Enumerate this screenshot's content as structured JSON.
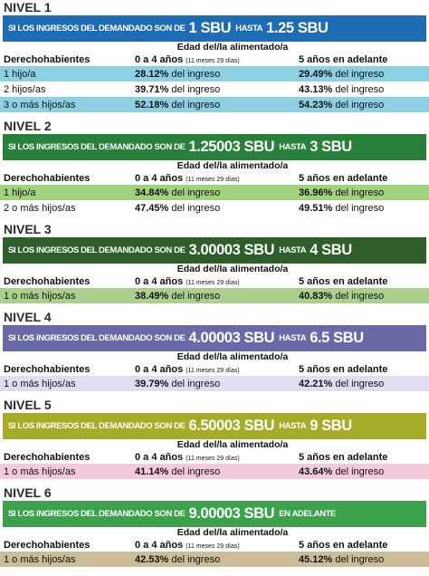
{
  "levels": [
    {
      "title": "NIVEL 1",
      "banner": {
        "prefix": "SI LOS INGRESOS DEL DEMANDADO SON DE",
        "from": "1 SBU",
        "connector": "HASTA",
        "to": "1.25 SBU"
      },
      "age_header": "Edad del/la alimentado/a",
      "columns": {
        "label": "Derechohabientes",
        "young": "0 a 4 años",
        "young_note": "(11 meses 29 días)",
        "old": "5 años en adelante"
      },
      "rows": [
        {
          "label": "1 hijo/a",
          "young": "28.12%",
          "young_suffix": "del ingreso",
          "old": "29.49%",
          "old_suffix": "del ingreso"
        },
        {
          "label": "2 hijos/as",
          "young": "39.71%",
          "young_suffix": "del ingreso",
          "old": "43.13%",
          "old_suffix": "del ingreso"
        },
        {
          "label": "3 o más hijos/as",
          "young": "52.18%",
          "young_suffix": "del ingreso",
          "old": "54.23%",
          "old_suffix": "del ingreso"
        }
      ]
    },
    {
      "title": "NIVEL 2",
      "banner": {
        "prefix": "SI LOS INGRESOS DEL DEMANDADO SON DE",
        "from": "1.25003 SBU",
        "connector": "HASTA",
        "to": "3 SBU"
      },
      "age_header": "Edad del/la alimentado/a",
      "columns": {
        "label": "Derechohabientes",
        "young": "0 a 4 años",
        "young_note": "(11 meses 29 días)",
        "old": "5 años en adelante"
      },
      "rows": [
        {
          "label": "1 hijo/a",
          "young": "34.84%",
          "young_suffix": "del ingreso",
          "old": "36.96%",
          "old_suffix": "del ingreso"
        },
        {
          "label": "2 o más hijos/as",
          "young": "47.45%",
          "young_suffix": "del ingreso",
          "old": "49.51%",
          "old_suffix": "del ingreso"
        }
      ]
    },
    {
      "title": "NIVEL 3",
      "banner": {
        "prefix": "SI LOS INGRESOS DEL DEMANDADO SON DE",
        "from": "3.00003 SBU",
        "connector": "HASTA",
        "to": "4 SBU"
      },
      "age_header": "Edad del/la alimentado/a",
      "columns": {
        "label": "Derechohabientes",
        "young": "0 a 4 años",
        "young_note": "(11 meses 29 días)",
        "old": "5 años en adelante"
      },
      "rows": [
        {
          "label": "1 o más hijos/as",
          "young": "38.49%",
          "young_suffix": "del ingreso",
          "old": "40.83%",
          "old_suffix": "del ingreso"
        }
      ]
    },
    {
      "title": "NIVEL 4",
      "banner": {
        "prefix": "SI LOS INGRESOS DEL DEMANDADO SON DE",
        "from": "4.00003 SBU",
        "connector": "HASTA",
        "to": "6.5 SBU"
      },
      "age_header": "Edad del/la alimentado/a",
      "columns": {
        "label": "Derechohabientes",
        "young": "0 a 4 años",
        "young_note": "(11 meses 29 días)",
        "old": "5 años en adelante"
      },
      "rows": [
        {
          "label": "1 o más hijos/as",
          "young": "39.79%",
          "young_suffix": "del ingreso",
          "old": "42.21%",
          "old_suffix": "del ingreso"
        }
      ]
    },
    {
      "title": "NIVEL 5",
      "banner": {
        "prefix": "SI LOS INGRESOS DEL DEMANDADO SON DE",
        "from": "6.50003 SBU",
        "connector": "HASTA",
        "to": "9 SBU"
      },
      "age_header": "Edad del/la alimentado/a",
      "columns": {
        "label": "Derechohabientes",
        "young": "0 a 4 años",
        "young_note": "(11 meses 29 días)",
        "old": "5 años en adelante"
      },
      "rows": [
        {
          "label": "1 o más hijos/as",
          "young": "41.14%",
          "young_suffix": "del ingreso",
          "old": "43.64%",
          "old_suffix": "del ingreso"
        }
      ]
    },
    {
      "title": "NIVEL 6",
      "banner": {
        "prefix": "SI LOS INGRESOS DEL DEMANDADO SON DE",
        "from": "9.00003 SBU",
        "connector": "EN ADELANTE"
      },
      "age_header": "Edad del/la alimentado/a",
      "columns": {
        "label": "Derechohabientes",
        "young": "0 a 4 años",
        "young_note": "(11 meses 29 días)",
        "old": "5 años en adelante"
      },
      "rows": [
        {
          "label": "1 o más hijos/as",
          "young": "42.53%",
          "young_suffix": "del ingreso",
          "old": "45.12%",
          "old_suffix": "del ingreso"
        }
      ]
    }
  ]
}
